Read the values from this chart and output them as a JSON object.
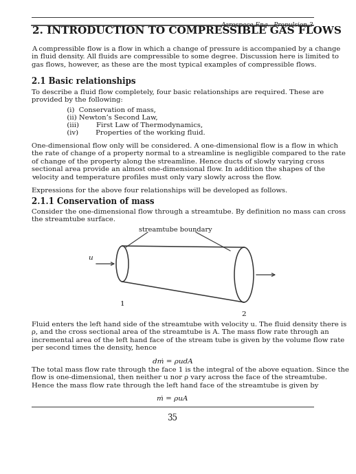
{
  "header_italic": "Aerospace Eng., Propulsion 3",
  "title": "2. INTRODUCTION TO COMPRESSIBLE GAS FLOWS",
  "para1": "A compressible flow is a flow in which a change of pressure is accompanied by a change\nin fluid density. All fluids are compressible to some degree. Discussion here is limited to\ngas flows, however, as these are the most typical examples of compressible flows.",
  "section21": "2.1 Basic relationships",
  "para2": "To describe a fluid flow completely, four basic relationships are required. These are\nprovided by the following:",
  "list_items": [
    "   (i)  Conservation of mass,",
    "   (ii) Newton’s Second Law,",
    "   (iii)        First Law of Thermodynamics,",
    "   (iv)        Properties of the working fluid."
  ],
  "para3": "One-dimensional flow only will be considered. A one-dimensional flow is a flow in which\nthe rate of change of a property normal to a streamline is negligible compared to the rate\nof change of the property along the streamline. Hence ducts of slowly varying cross\nsectional area provide an almost one-dimensional flow. In addition the shapes of the\nvelocity and temperature profiles must only vary slowly across the flow.",
  "para4": "Expressions for the above four relationships will be developed as follows.",
  "section211": "2.1.1 Conservation of mass",
  "para5": "Consider the one-dimensional flow through a streamtube. By definition no mass can cross\nthe streamtube surface.",
  "streamtube_label": "streamtube boundary",
  "label1": "1",
  "label2": "2",
  "label_u": "u",
  "para6": "Fluid enters the left hand side of the streamtube with velocity u. The fluid density there is\nρ, and the cross sectional area of the streamtube is A. The mass flow rate through an\nincremental area of the left hand face of the stream tube is given by the volume flow rate\nper second times the density, hence",
  "eq1": "dṁ = ρudA",
  "para7": "The total mass flow rate through the face 1 is the integral of the above equation. Since the\nflow is one-dimensional, then neither u nor ρ vary across the face of the streamtube.\nHence the mass flow rate through the left hand face of the streamtube is given by",
  "eq2": "ṁ = ρuA",
  "page_num": "35",
  "bg_color": "#ffffff",
  "text_color": "#1a1a1a"
}
